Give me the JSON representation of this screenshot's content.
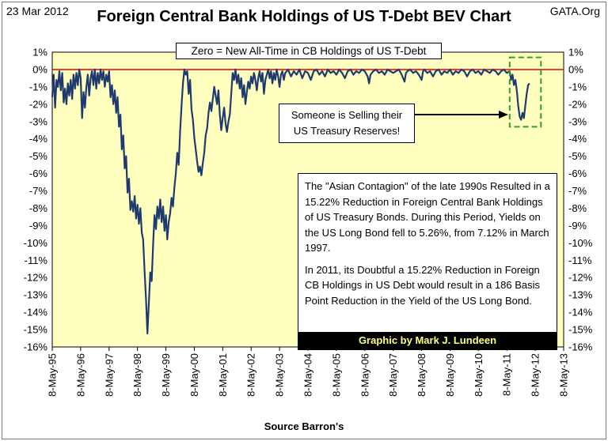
{
  "header": {
    "date": "23 Mar 2012",
    "title": "Foreign Central Bank Holdings of US T-Debt BEV Chart",
    "site": "GATA.Org"
  },
  "annotations": {
    "zero_label": "Zero = New All-Time in CB Holdings of US T-Debt",
    "callout_line1": "Someone is Selling their",
    "callout_line2": "US Treasury Reserves!",
    "note_paragraph1": "The \"Asian Contagion\" of the late 1990s Resulted in a 15.22% Reduction in Foreign Central Bank Holdings of US Treasury Bonds. During this Period, Yields on the US Long Bond fell to 5.26%, from 7.12% in March 1997.",
    "note_paragraph2": "In 2011, its Doubtful a 15.22% Reduction in Foreign CB Holdings in US Debt would result in a 186 Basis Point Reduction in the Yield of the US Long Bond.",
    "credit": "Graphic by Mark J. Lundeen"
  },
  "colors": {
    "plot_background": "#ffffc0",
    "series_line": "#1f3a6e",
    "zero_line": "#e00000",
    "highlight_box": "#2e9e2e"
  },
  "chart_data": {
    "type": "line",
    "title": "Foreign Central Bank Holdings of US T-Debt BEV Chart",
    "xlabel": "Source Barron's",
    "ylabel": "",
    "ylim": [
      -16,
      1
    ],
    "xlim": [
      0,
      18
    ],
    "grid": false,
    "y_ticks": [
      1,
      0,
      -1,
      -2,
      -3,
      -4,
      -5,
      -6,
      -7,
      -8,
      -9,
      -10,
      -11,
      -12,
      -13,
      -14,
      -15,
      -16
    ],
    "y_tick_labels": [
      "1%",
      "0%",
      "-1%",
      "-2%",
      "-3%",
      "-4%",
      "-5%",
      "-6%",
      "-7%",
      "-8%",
      "-9%",
      "-10%",
      "-11%",
      "-12%",
      "-13%",
      "-14%",
      "-15%",
      "-16%"
    ],
    "x_tick_labels": [
      "8-May-95",
      "8-May-96",
      "8-May-97",
      "8-May-98",
      "8-May-99",
      "8-May-00",
      "8-May-01",
      "8-May-02",
      "8-May-03",
      "8-May-04",
      "8-May-05",
      "8-May-06",
      "8-May-07",
      "8-May-08",
      "8-May-09",
      "8-May-10",
      "8-May-11",
      "8-May-12",
      "8-May-13"
    ],
    "x_unit": "years since 8-May-1995",
    "series": [
      {
        "name": "Foreign CB Holdings of US T-Debt BEV",
        "points": [
          [
            0.0,
            -1.6
          ],
          [
            0.05,
            -0.3
          ],
          [
            0.1,
            -2.2
          ],
          [
            0.15,
            -0.6
          ],
          [
            0.2,
            -1.0
          ],
          [
            0.25,
            -0.1
          ],
          [
            0.3,
            -1.2
          ],
          [
            0.35,
            -0.2
          ],
          [
            0.4,
            -1.9
          ],
          [
            0.45,
            -1.1
          ],
          [
            0.5,
            -2.0
          ],
          [
            0.55,
            -0.8
          ],
          [
            0.6,
            -1.5
          ],
          [
            0.65,
            -0.6
          ],
          [
            0.7,
            -1.7
          ],
          [
            0.75,
            -0.3
          ],
          [
            0.8,
            -1.1
          ],
          [
            0.85,
            -0.2
          ],
          [
            0.9,
            -0.9
          ],
          [
            0.95,
            0.0
          ],
          [
            1.0,
            -0.5
          ],
          [
            1.05,
            -2.8
          ],
          [
            1.1,
            -1.3
          ],
          [
            1.15,
            -2.2
          ],
          [
            1.2,
            -1.0
          ],
          [
            1.25,
            -0.3
          ],
          [
            1.3,
            -1.5
          ],
          [
            1.35,
            -0.5
          ],
          [
            1.4,
            -0.1
          ],
          [
            1.45,
            -0.9
          ],
          [
            1.5,
            0.0
          ],
          [
            1.55,
            -1.1
          ],
          [
            1.6,
            -0.2
          ],
          [
            1.65,
            -0.8
          ],
          [
            1.7,
            0.0
          ],
          [
            1.75,
            -0.6
          ],
          [
            1.8,
            -0.1
          ],
          [
            1.85,
            -1.0
          ],
          [
            1.9,
            -0.3
          ],
          [
            1.95,
            -0.7
          ],
          [
            2.0,
            -0.1
          ],
          [
            2.05,
            -1.6
          ],
          [
            2.1,
            -0.9
          ],
          [
            2.15,
            -2.0
          ],
          [
            2.2,
            -1.2
          ],
          [
            2.25,
            -2.5
          ],
          [
            2.3,
            -1.6
          ],
          [
            2.35,
            -3.3
          ],
          [
            2.4,
            -2.6
          ],
          [
            2.45,
            -4.6
          ],
          [
            2.5,
            -3.8
          ],
          [
            2.55,
            -5.7
          ],
          [
            2.6,
            -5.0
          ],
          [
            2.65,
            -7.1
          ],
          [
            2.7,
            -6.3
          ],
          [
            2.75,
            -8.1
          ],
          [
            2.8,
            -7.6
          ],
          [
            2.85,
            -8.2
          ],
          [
            2.9,
            -7.3
          ],
          [
            2.95,
            -8.6
          ],
          [
            3.0,
            -7.8
          ],
          [
            3.05,
            -8.9
          ],
          [
            3.1,
            -8.0
          ],
          [
            3.15,
            -9.4
          ],
          [
            3.2,
            -9.8
          ],
          [
            3.25,
            -11.6
          ],
          [
            3.3,
            -13.2
          ],
          [
            3.35,
            -15.22
          ],
          [
            3.4,
            -13.5
          ],
          [
            3.45,
            -11.7
          ],
          [
            3.5,
            -12.2
          ],
          [
            3.55,
            -10.1
          ],
          [
            3.6,
            -8.4
          ],
          [
            3.65,
            -9.2
          ],
          [
            3.7,
            -7.9
          ],
          [
            3.75,
            -8.6
          ],
          [
            3.8,
            -7.5
          ],
          [
            3.85,
            -8.8
          ],
          [
            3.9,
            -7.9
          ],
          [
            3.95,
            -9.3
          ],
          [
            4.0,
            -8.4
          ],
          [
            4.05,
            -9.8
          ],
          [
            4.1,
            -8.8
          ],
          [
            4.15,
            -8.3
          ],
          [
            4.2,
            -7.4
          ],
          [
            4.25,
            -7.9
          ],
          [
            4.3,
            -6.8
          ],
          [
            4.35,
            -6.0
          ],
          [
            4.4,
            -4.8
          ],
          [
            4.45,
            -5.5
          ],
          [
            4.5,
            -3.6
          ],
          [
            4.55,
            -2.1
          ],
          [
            4.6,
            -0.8
          ],
          [
            4.65,
            0.0
          ],
          [
            4.7,
            -0.3
          ],
          [
            4.75,
            -0.1
          ],
          [
            4.8,
            -1.4
          ],
          [
            4.85,
            -0.6
          ],
          [
            4.9,
            -2.3
          ],
          [
            4.95,
            -2.9
          ],
          [
            5.0,
            -3.9
          ],
          [
            5.05,
            -4.6
          ],
          [
            5.1,
            -5.3
          ],
          [
            5.15,
            -5.9
          ],
          [
            5.2,
            -5.6
          ],
          [
            5.25,
            -6.1
          ],
          [
            5.3,
            -5.4
          ],
          [
            5.35,
            -4.8
          ],
          [
            5.4,
            -3.8
          ],
          [
            5.45,
            -3.4
          ],
          [
            5.5,
            -2.5
          ],
          [
            5.55,
            -1.9
          ],
          [
            5.6,
            -2.4
          ],
          [
            5.65,
            -1.7
          ],
          [
            5.7,
            -1.0
          ],
          [
            5.75,
            -1.5
          ],
          [
            5.8,
            -2.0
          ],
          [
            5.85,
            -1.2
          ],
          [
            5.9,
            -2.6
          ],
          [
            5.95,
            -3.5
          ],
          [
            6.0,
            -2.8
          ],
          [
            6.05,
            -2.2
          ],
          [
            6.1,
            -3.1
          ],
          [
            6.15,
            -3.6
          ],
          [
            6.2,
            -3.0
          ],
          [
            6.25,
            -2.6
          ],
          [
            6.3,
            -1.4
          ],
          [
            6.35,
            -0.2
          ],
          [
            6.4,
            -0.6
          ],
          [
            6.45,
            0.0
          ],
          [
            6.5,
            -0.8
          ],
          [
            6.55,
            -0.3
          ],
          [
            6.6,
            -1.1
          ],
          [
            6.65,
            -0.5
          ],
          [
            6.7,
            -1.6
          ],
          [
            6.75,
            -0.9
          ],
          [
            6.8,
            -2.0
          ],
          [
            6.85,
            -1.3
          ],
          [
            6.9,
            -0.7
          ],
          [
            6.95,
            -1.1
          ],
          [
            7.0,
            -0.4
          ],
          [
            7.05,
            -0.8
          ],
          [
            7.1,
            -0.2
          ],
          [
            7.15,
            -0.6
          ],
          [
            7.2,
            -1.2
          ],
          [
            7.25,
            -0.5
          ],
          [
            7.3,
            -0.1
          ],
          [
            7.35,
            -0.7
          ],
          [
            7.4,
            -0.2
          ],
          [
            7.45,
            -1.4
          ],
          [
            7.5,
            -0.6
          ],
          [
            7.55,
            -0.3
          ],
          [
            7.6,
            0.0
          ],
          [
            7.65,
            -0.5
          ],
          [
            7.7,
            -0.1
          ],
          [
            7.75,
            -0.8
          ],
          [
            7.8,
            -0.2
          ],
          [
            7.85,
            -0.6
          ],
          [
            7.9,
            0.0
          ],
          [
            7.95,
            -0.4
          ],
          [
            8.0,
            -1.0
          ],
          [
            8.05,
            -0.3
          ],
          [
            8.1,
            -0.1
          ],
          [
            8.15,
            -0.6
          ],
          [
            8.2,
            -0.2
          ],
          [
            8.3,
            0.0
          ],
          [
            8.4,
            -0.4
          ],
          [
            8.5,
            -0.1
          ],
          [
            8.6,
            -0.3
          ],
          [
            8.7,
            0.0
          ],
          [
            8.8,
            -0.5
          ],
          [
            8.9,
            -0.1
          ],
          [
            9.0,
            -0.2
          ],
          [
            9.1,
            -0.6
          ],
          [
            9.2,
            -0.1
          ],
          [
            9.3,
            0.0
          ],
          [
            9.4,
            -0.3
          ],
          [
            9.5,
            -0.1
          ],
          [
            9.6,
            -0.4
          ],
          [
            9.7,
            0.0
          ],
          [
            9.8,
            -0.2
          ],
          [
            9.9,
            -0.1
          ],
          [
            10.0,
            -0.3
          ],
          [
            10.1,
            0.0
          ],
          [
            10.2,
            -0.2
          ],
          [
            10.3,
            -0.5
          ],
          [
            10.4,
            -0.1
          ],
          [
            10.5,
            0.0
          ],
          [
            10.6,
            -0.3
          ],
          [
            10.7,
            -0.1
          ],
          [
            10.8,
            -0.2
          ],
          [
            10.9,
            0.0
          ],
          [
            11.0,
            -0.1
          ],
          [
            11.1,
            -0.4
          ],
          [
            11.15,
            -0.8
          ],
          [
            11.2,
            -0.3
          ],
          [
            11.3,
            -0.1
          ],
          [
            11.4,
            0.0
          ],
          [
            11.5,
            -0.2
          ],
          [
            11.6,
            -0.1
          ],
          [
            11.7,
            -0.3
          ],
          [
            11.8,
            0.0
          ],
          [
            11.9,
            -0.1
          ],
          [
            12.0,
            -0.2
          ],
          [
            12.1,
            -0.1
          ],
          [
            12.2,
            0.0
          ],
          [
            12.3,
            -0.3
          ],
          [
            12.4,
            -0.7
          ],
          [
            12.45,
            -0.2
          ],
          [
            12.5,
            -0.1
          ],
          [
            12.6,
            0.0
          ],
          [
            12.7,
            -0.2
          ],
          [
            12.8,
            -0.1
          ],
          [
            12.9,
            -0.3
          ],
          [
            13.0,
            -0.6
          ],
          [
            13.05,
            -0.1
          ],
          [
            13.1,
            0.0
          ],
          [
            13.2,
            -0.2
          ],
          [
            13.3,
            -0.1
          ],
          [
            13.4,
            -0.4
          ],
          [
            13.5,
            -0.1
          ],
          [
            13.6,
            0.0
          ],
          [
            13.7,
            -0.3
          ],
          [
            13.8,
            -0.1
          ],
          [
            13.9,
            -0.2
          ],
          [
            14.0,
            0.0
          ],
          [
            14.1,
            -0.3
          ],
          [
            14.2,
            -0.1
          ],
          [
            14.3,
            -0.2
          ],
          [
            14.4,
            0.0
          ],
          [
            14.5,
            -0.1
          ],
          [
            14.6,
            -0.4
          ],
          [
            14.7,
            -0.1
          ],
          [
            14.8,
            0.0
          ],
          [
            14.9,
            -0.2
          ],
          [
            15.0,
            -0.1
          ],
          [
            15.1,
            -0.3
          ],
          [
            15.2,
            0.0
          ],
          [
            15.3,
            -0.1
          ],
          [
            15.4,
            -0.2
          ],
          [
            15.5,
            0.0
          ],
          [
            15.6,
            -0.1
          ],
          [
            15.7,
            -0.3
          ],
          [
            15.8,
            -0.1
          ],
          [
            15.9,
            0.0
          ],
          [
            16.0,
            -0.2
          ],
          [
            16.1,
            -0.1
          ],
          [
            16.15,
            -0.6
          ],
          [
            16.2,
            -0.3
          ],
          [
            16.25,
            -0.9
          ],
          [
            16.3,
            -0.6
          ],
          [
            16.35,
            -1.2
          ],
          [
            16.4,
            -2.1
          ],
          [
            16.45,
            -2.7
          ],
          [
            16.5,
            -2.9
          ],
          [
            16.55,
            -2.5
          ],
          [
            16.6,
            -2.8
          ],
          [
            16.65,
            -2.1
          ],
          [
            16.7,
            -1.4
          ],
          [
            16.75,
            -0.9
          ],
          [
            16.8,
            -0.8
          ]
        ]
      }
    ]
  }
}
